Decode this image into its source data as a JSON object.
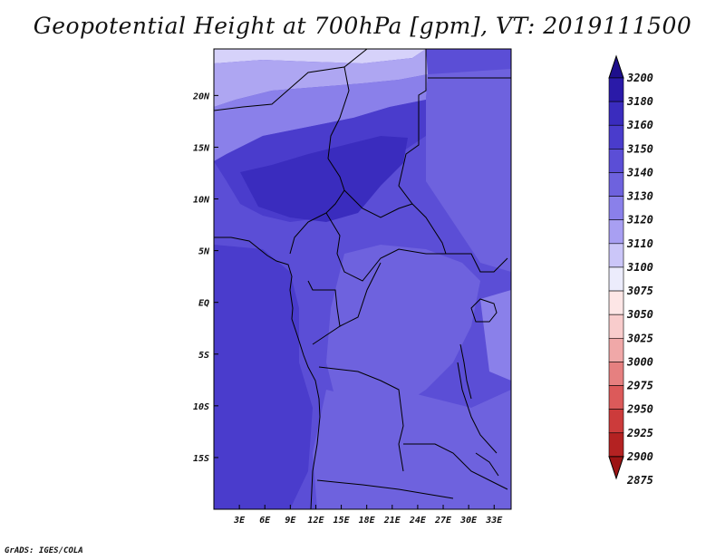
{
  "title": "Geopotential Height at 700hPa [gpm], VT: 2019111500",
  "credit": "GrADS: IGES/COLA",
  "map": {
    "lon_range": [
      0,
      35
    ],
    "lat_range": [
      -20,
      24.5
    ],
    "lon_ticks": [
      "3E",
      "6E",
      "9E",
      "12E",
      "15E",
      "18E",
      "21E",
      "24E",
      "27E",
      "30E",
      "33E"
    ],
    "lon_tick_values": [
      3,
      6,
      9,
      12,
      15,
      18,
      21,
      24,
      27,
      30,
      33
    ],
    "lat_ticks": [
      "20N",
      "15N",
      "10N",
      "5N",
      "EQ",
      "5S",
      "10S",
      "15S"
    ],
    "lat_tick_values": [
      20,
      15,
      10,
      5,
      0,
      -5,
      -10,
      -15
    ]
  },
  "colorbar": {
    "levels": [
      "3200",
      "3180",
      "3160",
      "3150",
      "3140",
      "3130",
      "3120",
      "3110",
      "3100",
      "3075",
      "3050",
      "3025",
      "3000",
      "2975",
      "2950",
      "2925",
      "2900",
      "2875"
    ],
    "colors": [
      "#1e0f8c",
      "#2a1aa8",
      "#3a2cbe",
      "#4a3ccc",
      "#5b4ed6",
      "#6e62de",
      "#8a80ea",
      "#a89ff2",
      "#cbc6f8",
      "#ececfc",
      "#fde6e6",
      "#f8cccc",
      "#f0a8a8",
      "#e68080",
      "#dc5a5a",
      "#cc3b3b",
      "#b42222",
      "#9c1414"
    ]
  },
  "field_colors": {
    "lightest": "#d6d2fa",
    "lighter": "#aea6f2",
    "light": "#8a80ea",
    "mid": "#6e62de",
    "midhigh": "#5b4ed6",
    "high": "#4a3ccc",
    "higher": "#3a2cbe"
  }
}
